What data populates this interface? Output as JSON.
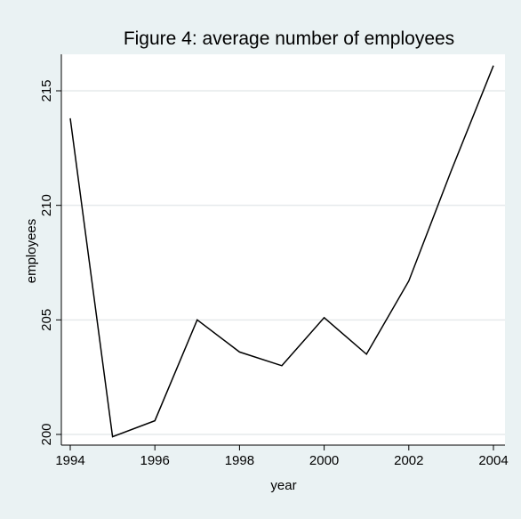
{
  "chart_data": {
    "type": "line",
    "title": "Figure 4: average number of employees",
    "xlabel": "year",
    "ylabel": "employees",
    "x": [
      1994,
      1995,
      1996,
      1997,
      1998,
      1999,
      2000,
      2001,
      2002,
      2003,
      2004
    ],
    "series": [
      {
        "values": [
          213.8,
          199.9,
          200.6,
          205.0,
          203.6,
          203.0,
          205.1,
          203.5,
          206.7,
          211.5,
          216.1
        ]
      }
    ],
    "xlim": [
      1994,
      2004
    ],
    "ylim": [
      199.6,
      216.4
    ],
    "xticks": [
      1994,
      1996,
      1998,
      2000,
      2002,
      2004
    ],
    "yticks": [
      200,
      205,
      210,
      215
    ],
    "grid": "horizontal",
    "legend": "none",
    "colors": {
      "page_background": "#eaf2f3",
      "plot_background": "#ffffff",
      "line": "#000000",
      "grid": "#e6eaec"
    }
  }
}
